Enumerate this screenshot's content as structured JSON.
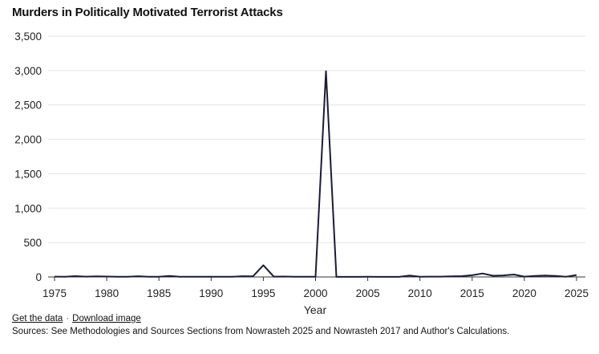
{
  "chart_data": {
    "type": "line",
    "title": "Murders in Politically Motivated Terrorist Attacks",
    "xlabel": "Year",
    "ylabel": "",
    "xlim": [
      1975,
      2025
    ],
    "ylim": [
      0,
      3500
    ],
    "x_ticks": [
      1975,
      1980,
      1985,
      1990,
      1995,
      2000,
      2005,
      2010,
      2015,
      2020,
      2025
    ],
    "x_tick_labels": [
      "1975",
      "1980",
      "1985",
      "1990",
      "1995",
      "2000",
      "2005",
      "2010",
      "2015",
      "2020",
      "2025"
    ],
    "y_ticks": [
      0,
      500,
      1000,
      1500,
      2000,
      2500,
      3000,
      3500
    ],
    "y_tick_labels": [
      "0",
      "500",
      "1,000",
      "1,500",
      "2,000",
      "2,500",
      "3,000",
      "3,500"
    ],
    "grid": true,
    "legend": "none",
    "color": "#1b1b3a",
    "series": [
      {
        "name": "Murders",
        "x": [
          1975,
          1976,
          1977,
          1978,
          1979,
          1980,
          1981,
          1982,
          1983,
          1984,
          1985,
          1986,
          1987,
          1988,
          1989,
          1990,
          1991,
          1992,
          1993,
          1994,
          1995,
          1996,
          1997,
          1998,
          1999,
          2000,
          2001,
          2002,
          2003,
          2004,
          2005,
          2006,
          2007,
          2008,
          2009,
          2010,
          2011,
          2012,
          2013,
          2014,
          2015,
          2016,
          2017,
          2018,
          2019,
          2020,
          2021,
          2022,
          2023,
          2024,
          2025
        ],
        "values": [
          5,
          3,
          12,
          5,
          8,
          6,
          3,
          2,
          10,
          3,
          2,
          14,
          2,
          3,
          2,
          3,
          2,
          3,
          10,
          8,
          170,
          5,
          6,
          3,
          2,
          2,
          2990,
          1,
          1,
          1,
          2,
          1,
          1,
          1,
          20,
          3,
          5,
          5,
          8,
          12,
          25,
          50,
          18,
          22,
          35,
          5,
          15,
          20,
          15,
          3,
          28
        ]
      }
    ]
  },
  "footer": {
    "get_data_label": "Get the data",
    "separator": "·",
    "download_label": "Download image",
    "sources": "Sources: See Methodologies and Sources Sections from Nowrasteh 2025 and Nowrasteh 2017 and Author's Calculations."
  }
}
